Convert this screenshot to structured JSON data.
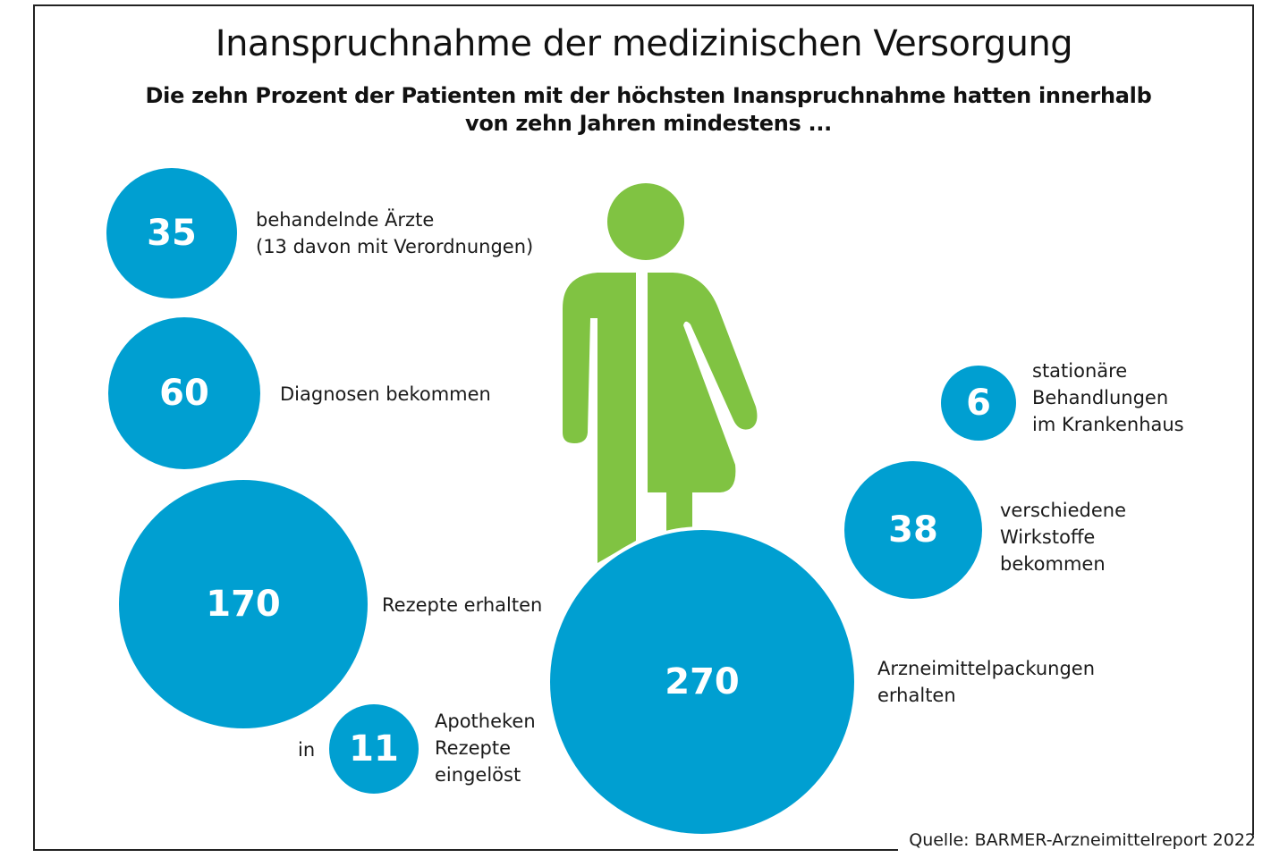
{
  "chart_data": {
    "type": "bubble-infographic",
    "title": "Inanspruchnahme der medizinischen Versorgung",
    "subtitle_lines": [
      "Die zehn Prozent der Patienten mit der höchsten Inanspruchnahme hatten innerhalb",
      "von zehn Jahren mindestens ..."
    ],
    "source": "Quelle: BARMER-Arzneimittelreport 2022",
    "bubbles": [
      {
        "id": "aerzte",
        "value": 35,
        "label": "35",
        "description_lines": [
          "behandelnde Ärzte",
          "(13 davon mit Verordnungen)"
        ]
      },
      {
        "id": "diagnosen",
        "value": 60,
        "label": "60",
        "description_lines": [
          "Diagnosen bekommen"
        ]
      },
      {
        "id": "rezepte",
        "value": 170,
        "label": "170",
        "description_lines": [
          "Rezepte erhalten"
        ]
      },
      {
        "id": "apotheken",
        "value": 11,
        "label": "11",
        "prefix": "in",
        "description_lines": [
          "Apotheken",
          "Rezepte",
          "eingelöst"
        ]
      },
      {
        "id": "packungen",
        "value": 270,
        "label": "270",
        "description_lines": [
          "Arzneimittelpackungen",
          "erhalten"
        ]
      },
      {
        "id": "wirkstoffe",
        "value": 38,
        "label": "38",
        "description_lines": [
          "verschiedene",
          "Wirkstoffe",
          "bekommen"
        ]
      },
      {
        "id": "stationaer",
        "value": 6,
        "label": "6",
        "description_lines": [
          "stationäre",
          "Behandlungen",
          "im Krankenhaus"
        ]
      }
    ],
    "colors": {
      "bubble": "#009fd1",
      "figure": "#80c342",
      "bubble_text": "#ffffff"
    }
  },
  "figure": {
    "icon": "gender-neutral-person-icon"
  }
}
